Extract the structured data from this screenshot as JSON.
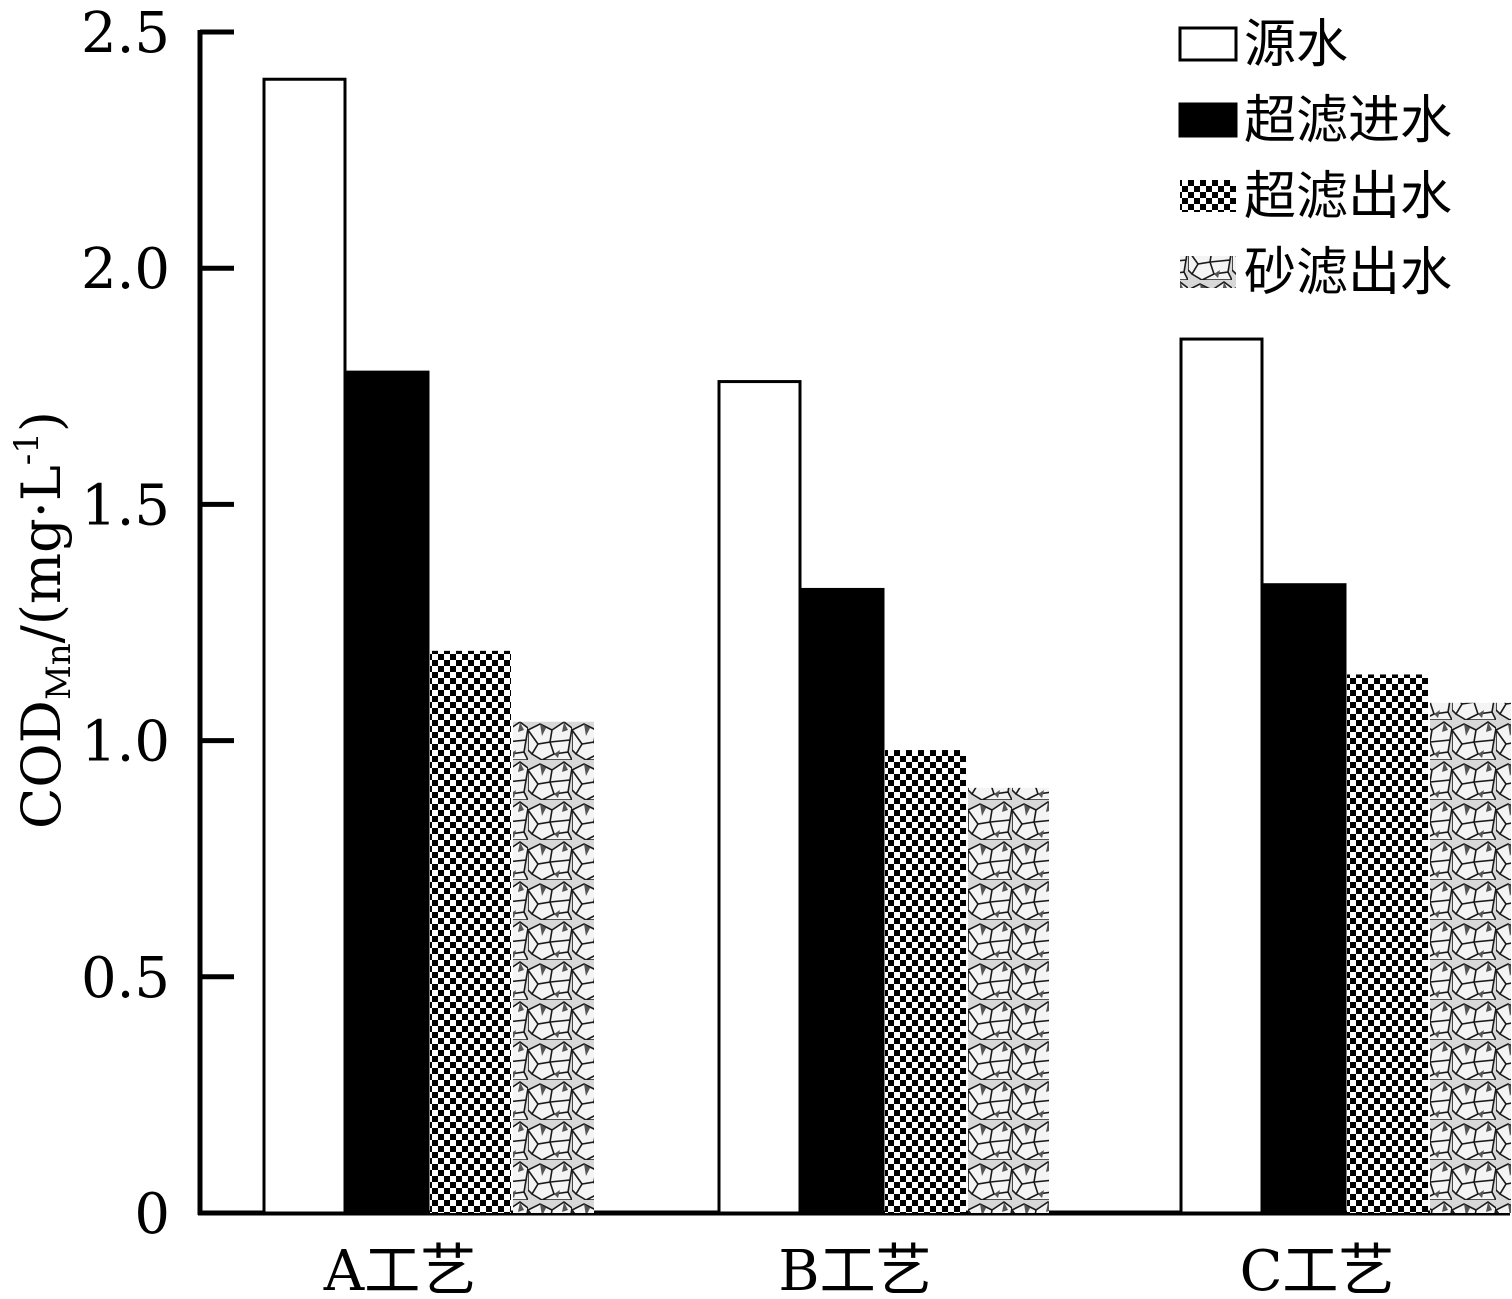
{
  "chart_data": {
    "type": "bar",
    "title": "",
    "xlabel": "",
    "ylabel": {
      "main": "COD",
      "subscript": "Mn",
      "unit_open": "/(mg·L",
      "superscript": "-1",
      "unit_close": ")"
    },
    "ylim": [
      0,
      2.5
    ],
    "yticks": [
      0,
      0.5,
      1.0,
      1.5,
      2.0,
      2.5
    ],
    "ytick_labels": [
      "0",
      "0.5",
      "1.0",
      "1.5",
      "2.0",
      "2.5"
    ],
    "categories": [
      "A工艺",
      "B工艺",
      "C工艺"
    ],
    "series": [
      {
        "name": "源水",
        "pattern": "white",
        "values": [
          2.4,
          1.76,
          1.85
        ]
      },
      {
        "name": "超滤进水",
        "pattern": "black",
        "values": [
          1.78,
          1.32,
          1.33
        ]
      },
      {
        "name": "超滤出水",
        "pattern": "checker",
        "values": [
          1.19,
          0.98,
          1.14
        ]
      },
      {
        "name": "砂滤出水",
        "pattern": "cells",
        "values": [
          1.04,
          0.9,
          1.08
        ]
      }
    ],
    "legend_position": "top-right"
  }
}
